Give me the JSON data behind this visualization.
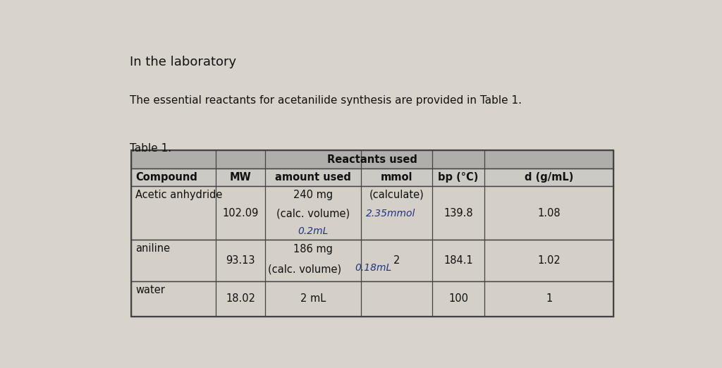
{
  "title_line1": "In the laboratory",
  "intro_text": "The essential reactants for acetanilide synthesis are provided in Table 1.",
  "table_title": "Table 1.",
  "header_group": "Reactants used",
  "col_headers": [
    "Compound",
    "MW",
    "amount used",
    "mmol",
    "bp (°C)",
    "d (g/mL)"
  ],
  "rows": [
    {
      "compound": "Acetic anhydride",
      "mw": "102.09",
      "amount_printed1": "240 mg",
      "amount_printed2": "(calc. volume)",
      "amount_hw": "0.2mL",
      "mmol_printed": "(calculate)",
      "mmol_hw": "2.35mmol",
      "bp": "139.8",
      "d": "1.08"
    },
    {
      "compound": "aniline",
      "mw": "93.13",
      "amount_printed1": "186 mg",
      "amount_printed2": "(calc. volume)",
      "amount_hw": "0.18mL",
      "mmol_printed": "2",
      "mmol_hw": "",
      "bp": "184.1",
      "d": "1.02"
    },
    {
      "compound": "water",
      "mw": "18.02",
      "amount_printed1": "2 mL",
      "amount_printed2": "",
      "amount_hw": "",
      "mmol_printed": "",
      "mmol_hw": "",
      "bp": "100",
      "d": "1"
    }
  ],
  "page_bg": "#d8d4cc",
  "table_header_bg": "#b0aeaa",
  "table_subheader_bg": "#cccac4",
  "table_row_bg": "#d4d0c8",
  "table_border": "#444444",
  "text_color": "#111111",
  "handwritten_color": "#223388",
  "title_fontsize": 13,
  "body_fontsize": 11,
  "table_fontsize": 10.5,
  "hw_fontsize": 10
}
